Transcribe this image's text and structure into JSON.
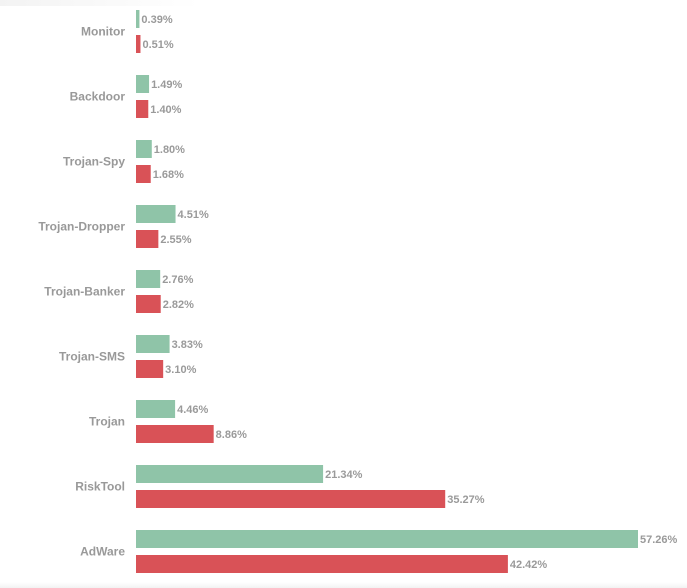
{
  "chart_data": {
    "type": "bar",
    "orientation": "horizontal",
    "categories": [
      "Monitor",
      "Backdoor",
      "Trojan-Spy",
      "Trojan-Dropper",
      "Trojan-Banker",
      "Trojan-SMS",
      "Trojan",
      "RiskTool",
      "AdWare"
    ],
    "series": [
      {
        "values": [
          0.39,
          1.49,
          1.8,
          4.51,
          2.76,
          3.83,
          4.46,
          21.34,
          57.26
        ],
        "labels": [
          "0.39%",
          "1.49%",
          "1.80%",
          "4.51%",
          "2.76%",
          "3.83%",
          "4.46%",
          "21.34%",
          "57.26%"
        ],
        "color": "#8fc4a8"
      },
      {
        "values": [
          0.51,
          1.4,
          1.68,
          2.55,
          2.82,
          3.1,
          8.86,
          35.27,
          42.42
        ],
        "labels": [
          "0.51%",
          "1.40%",
          "1.68%",
          "2.55%",
          "2.82%",
          "3.10%",
          "8.86%",
          "35.27%",
          "42.42%"
        ],
        "color": "#d95257"
      }
    ],
    "xlim": [
      0,
      57.26
    ],
    "grid": false,
    "legend": "none",
    "title": "",
    "xlabel": "",
    "ylabel": ""
  }
}
